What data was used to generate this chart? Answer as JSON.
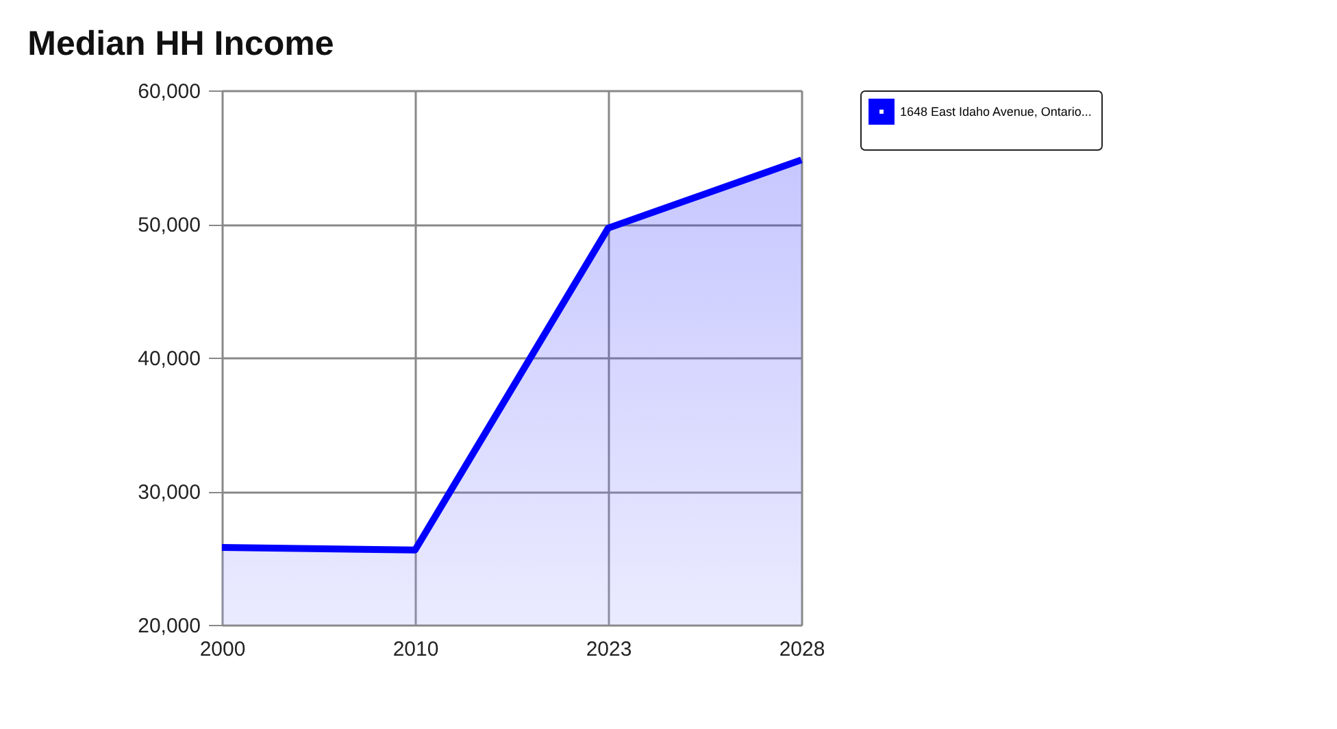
{
  "chart_data": {
    "type": "area",
    "title": "Median HH Income",
    "categories": [
      "2000",
      "2010",
      "2023",
      "2028"
    ],
    "series": [
      {
        "name": "1648 East Idaho Avenue, Ontario...",
        "color": "#0000ff",
        "values": [
          25800,
          25600,
          49700,
          54800
        ]
      }
    ],
    "ylim": [
      20000,
      60000
    ],
    "yticks": [
      {
        "value": 20000,
        "label": "20,000"
      },
      {
        "value": 30000,
        "label": "30,000"
      },
      {
        "value": 40000,
        "label": "40,000"
      },
      {
        "value": 50000,
        "label": "50,000"
      },
      {
        "value": 60000,
        "label": "60,000"
      }
    ],
    "grid": true,
    "legend": "right",
    "marker": "none",
    "line_style": "solid"
  }
}
